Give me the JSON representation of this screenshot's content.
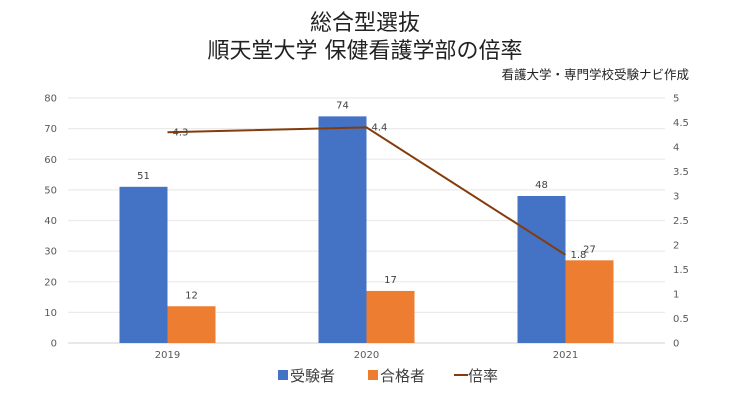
{
  "chart_data": {
    "type": "bar+line",
    "title": [
      "総合型選抜",
      "順天堂大学 保健看護学部の倍率"
    ],
    "subtitle": "看護大学・専門学校受験ナビ作成",
    "categories": [
      "2019",
      "2020",
      "2021"
    ],
    "series": [
      {
        "name": "受験者",
        "type": "bar",
        "axis": "left",
        "color": "#4472C4",
        "values": [
          51,
          74,
          48
        ]
      },
      {
        "name": "合格者",
        "type": "bar",
        "axis": "left",
        "color": "#ED7D31",
        "values": [
          12,
          17,
          27
        ]
      },
      {
        "name": "倍率",
        "type": "line",
        "axis": "right",
        "color": "#843C0C",
        "values": [
          4.3,
          4.4,
          1.8
        ]
      }
    ],
    "left_axis": {
      "ylim": [
        0,
        80
      ],
      "ticks": [
        "0",
        "10",
        "20",
        "30",
        "40",
        "50",
        "60",
        "70",
        "80"
      ]
    },
    "right_axis": {
      "ylim": [
        0,
        5
      ],
      "ticks": [
        "0",
        "0.5",
        "1",
        "1.5",
        "2",
        "2.5",
        "3",
        "3.5",
        "4",
        "4.5",
        "5"
      ]
    },
    "grid": true,
    "legend": "bottom"
  }
}
